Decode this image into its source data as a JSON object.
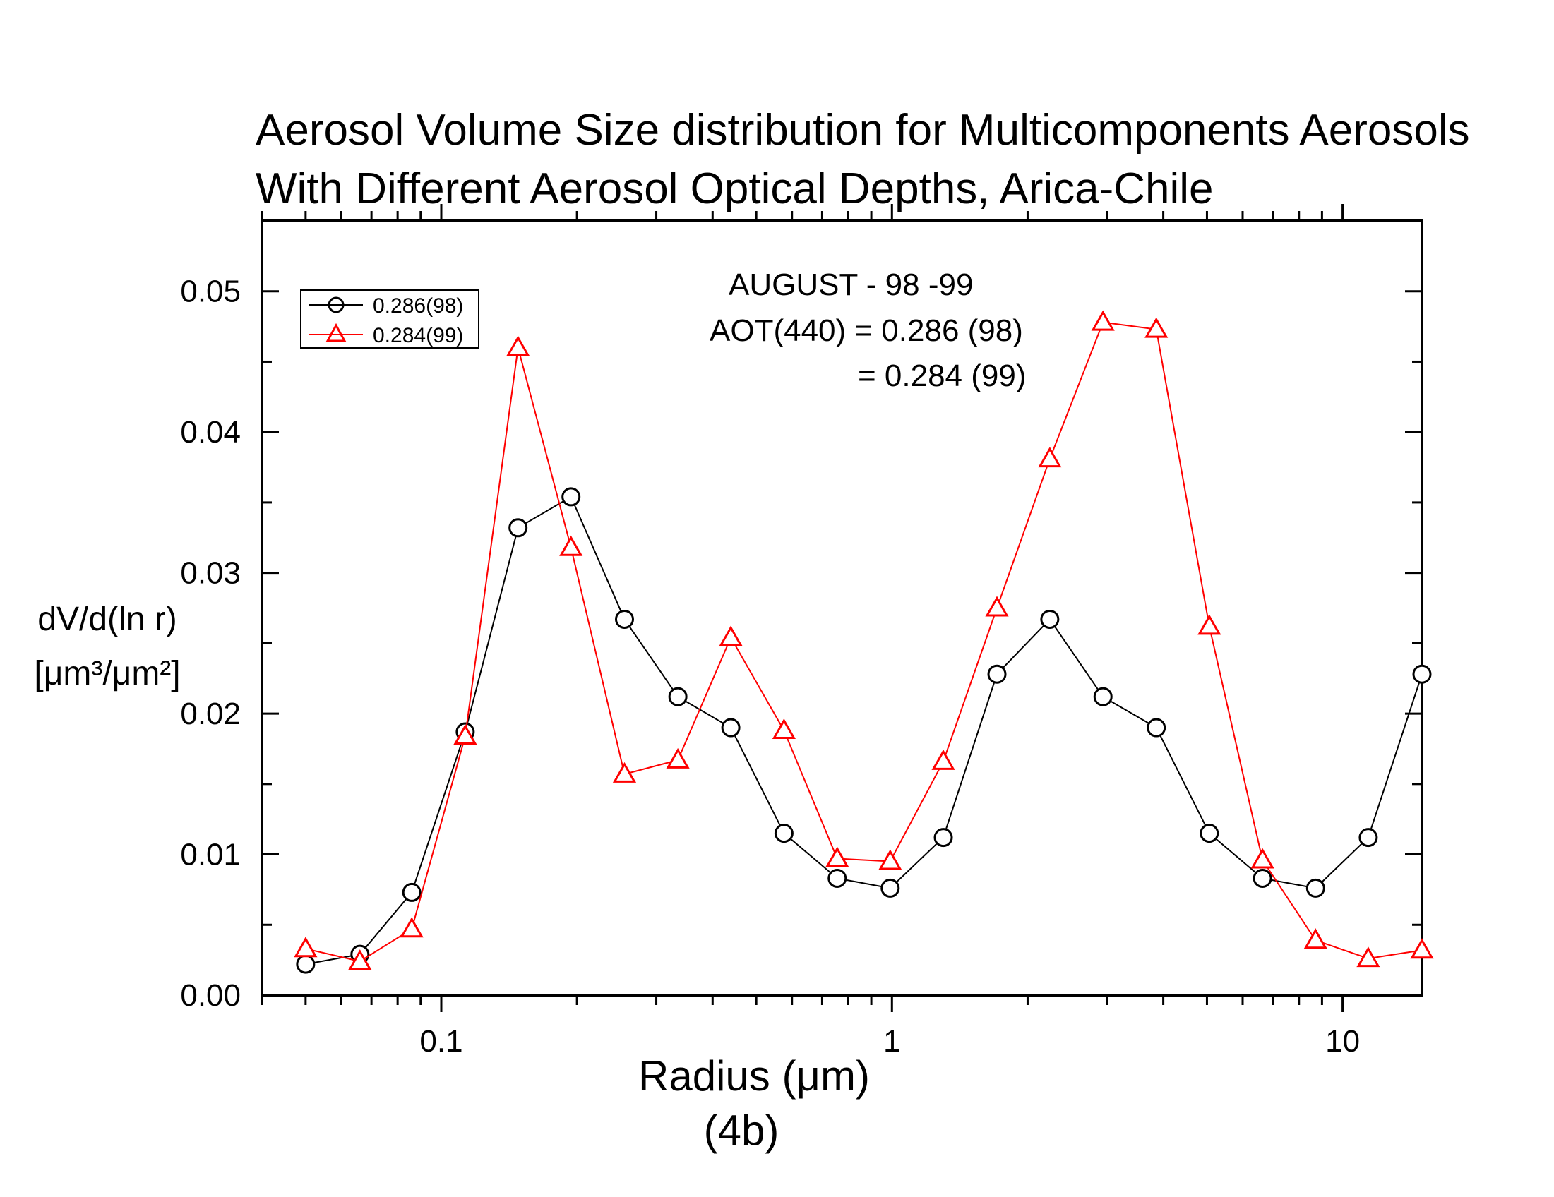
{
  "chart_data": {
    "type": "line",
    "title_lines": [
      "Aerosol Volume Size distribution for Multicomponents Aerosols",
      "With Different Aerosol Optical Depths, Arica-Chile"
    ],
    "xlabel": "Radius (μm)",
    "xlabel_sub": "(4b)",
    "ylabel": "dV/d(ln r)",
    "ylabel_units": "[μm³/μm²]",
    "x_scale": "log",
    "xlim": [
      0.04,
      15
    ],
    "ylim": [
      0,
      0.055
    ],
    "x_tick_labels": [
      "0.1",
      "1",
      "10"
    ],
    "y_tick_labels": [
      "0.00",
      "0.01",
      "0.02",
      "0.03",
      "0.04",
      "0.05"
    ],
    "legend_position": "top-left",
    "annotation": [
      "AUGUST - 98 -99",
      "AOT(440) = 0.286 (98)",
      "= 0.284 (99)"
    ],
    "series": [
      {
        "name": "0.286(98)",
        "color": "#000000",
        "marker": "circle",
        "x": [
          0.05,
          0.066,
          0.086,
          0.113,
          0.148,
          0.194,
          0.255,
          0.335,
          0.439,
          0.576,
          0.756,
          0.991,
          1.3,
          1.71,
          2.24,
          2.94,
          3.86,
          5.06,
          6.64,
          8.71,
          11.4,
          15.0
        ],
        "y": [
          0.0022,
          0.0029,
          0.0073,
          0.0187,
          0.0332,
          0.0354,
          0.0267,
          0.0212,
          0.019,
          0.0115,
          0.0083,
          0.0076,
          0.0112,
          0.0228,
          0.0267,
          0.0212,
          0.019,
          0.0115,
          0.0083,
          0.0076,
          0.0112,
          0.0228
        ]
      },
      {
        "name": "0.284(99)",
        "color": "#ff0000",
        "marker": "triangle",
        "x": [
          0.05,
          0.066,
          0.086,
          0.113,
          0.148,
          0.194,
          0.255,
          0.335,
          0.439,
          0.576,
          0.756,
          0.991,
          1.3,
          1.71,
          2.24,
          2.94,
          3.86,
          5.06,
          6.64,
          8.71,
          11.4,
          15.0
        ],
        "y": [
          0.0033,
          0.0024,
          0.0047,
          0.0184,
          0.046,
          0.0318,
          0.0157,
          0.0167,
          0.0254,
          0.0188,
          0.0097,
          0.0095,
          0.0166,
          0.0275,
          0.0381,
          0.0478,
          0.0473,
          0.0262,
          0.0096,
          0.0039,
          0.0026,
          0.0032
        ]
      }
    ]
  }
}
